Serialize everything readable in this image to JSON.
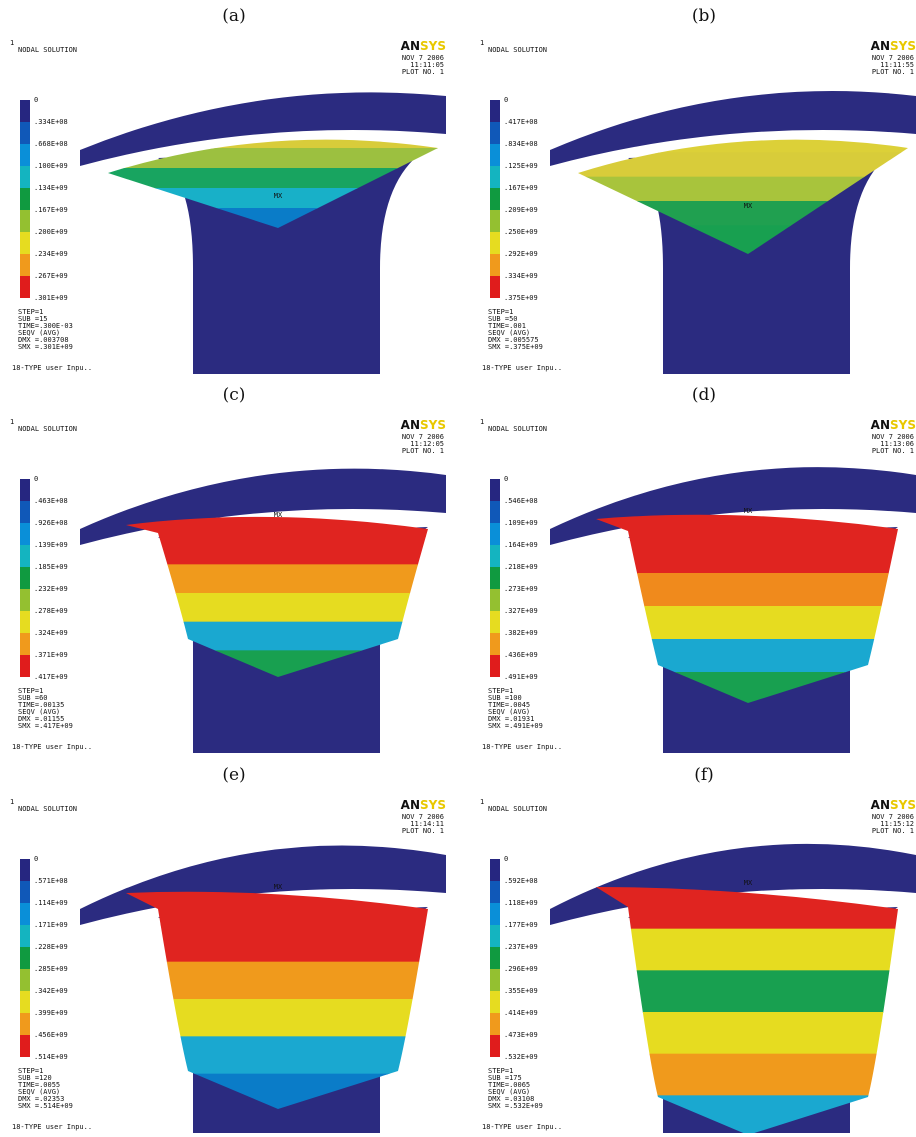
{
  "panels": [
    {
      "label": "(a)",
      "corner": "1",
      "title": "NODAL SOLUTION",
      "logo": [
        "AN",
        "SYS"
      ],
      "header": [
        "NOV 7 2006",
        "11:11:05",
        "PLOT NO. 1"
      ],
      "legend": [
        "0",
        ".334E+08",
        ".668E+08",
        ".100E+09",
        ".134E+09",
        ".167E+09",
        ".200E+09",
        ".234E+09",
        ".267E+09",
        ".301E+09"
      ],
      "info": [
        "STEP=1",
        "SUB =15",
        "TIME=.300E-03",
        "SEQV (AVG)",
        "DMX =.003708",
        "SMX =.301E+09"
      ],
      "footer": "18-TYPE user Inpu..",
      "marker": "MX"
    },
    {
      "label": "(b)",
      "corner": "1",
      "title": "NODAL SOLUTION",
      "logo": [
        "AN",
        "SYS"
      ],
      "header": [
        "NOV 7 2006",
        "11:11:55",
        "PLOT NO. 1"
      ],
      "legend": [
        "0",
        ".417E+08",
        ".834E+08",
        ".125E+09",
        ".167E+09",
        ".209E+09",
        ".250E+09",
        ".292E+09",
        ".334E+09",
        ".375E+09"
      ],
      "info": [
        "STEP=1",
        "SUB =50",
        "TIME=.001",
        "SEQV (AVG)",
        "DMX =.005575",
        "SMX =.375E+09"
      ],
      "footer": "18-TYPE user Inpu..",
      "marker": "MX"
    },
    {
      "label": "(c)",
      "corner": "1",
      "title": "NODAL SOLUTION",
      "logo": [
        "AN",
        "SYS"
      ],
      "header": [
        "NOV 7 2006",
        "11:12:05",
        "PLOT NO. 1"
      ],
      "legend": [
        "0",
        ".463E+08",
        ".926E+08",
        ".139E+09",
        ".185E+09",
        ".232E+09",
        ".278E+09",
        ".324E+09",
        ".371E+09",
        ".417E+09"
      ],
      "info": [
        "STEP=1",
        "SUB =60",
        "TIME=.00135",
        "SEQV (AVG)",
        "DMX =.01155",
        "SMX =.417E+09"
      ],
      "footer": "18-TYPE user Inpu..",
      "marker": "MX"
    },
    {
      "label": "(d)",
      "corner": "1",
      "title": "NODAL SOLUTION",
      "logo": [
        "AN",
        "SYS"
      ],
      "header": [
        "NOV 7 2006",
        "11:13:06",
        "PLOT NO. 1"
      ],
      "legend": [
        "0",
        ".546E+08",
        ".109E+09",
        ".164E+09",
        ".218E+09",
        ".273E+09",
        ".327E+09",
        ".382E+09",
        ".436E+09",
        ".491E+09"
      ],
      "info": [
        "STEP=1",
        "SUB =100",
        "TIME=.0045",
        "SEQV (AVG)",
        "DMX =.01931",
        "SMX =.491E+09"
      ],
      "footer": "18-TYPE user Inpu..",
      "marker": "MX"
    },
    {
      "label": "(e)",
      "corner": "1",
      "title": "NODAL SOLUTION",
      "logo": [
        "AN",
        "SYS"
      ],
      "header": [
        "NOV 7 2006",
        "11:14:11",
        "PLOT NO. 1"
      ],
      "legend": [
        "0",
        ".571E+08",
        ".114E+09",
        ".171E+09",
        ".228E+09",
        ".285E+09",
        ".342E+09",
        ".399E+09",
        ".456E+09",
        ".514E+09"
      ],
      "info": [
        "STEP=1",
        "SUB =120",
        "TIME=.0055",
        "SEQV (AVG)",
        "DMX =.02353",
        "SMX =.514E+09"
      ],
      "footer": "18-TYPE user Inpu..",
      "marker": "MX"
    },
    {
      "label": "(f)",
      "corner": "1",
      "title": "NODAL SOLUTION",
      "logo": [
        "AN",
        "SYS"
      ],
      "header": [
        "NOV 7 2006",
        "11:15:12",
        "PLOT NO. 1"
      ],
      "legend": [
        "0",
        ".592E+08",
        ".118E+09",
        ".177E+09",
        ".237E+09",
        ".296E+09",
        ".355E+09",
        ".414E+09",
        ".473E+09",
        ".532E+09"
      ],
      "info": [
        "STEP=1",
        "SUB =175",
        "TIME=.0065",
        "SEQV (AVG)",
        "DMX =.03108",
        "SMX =.532E+09"
      ],
      "footer": "18-TYPE user Inpu..",
      "marker": "MX"
    }
  ]
}
